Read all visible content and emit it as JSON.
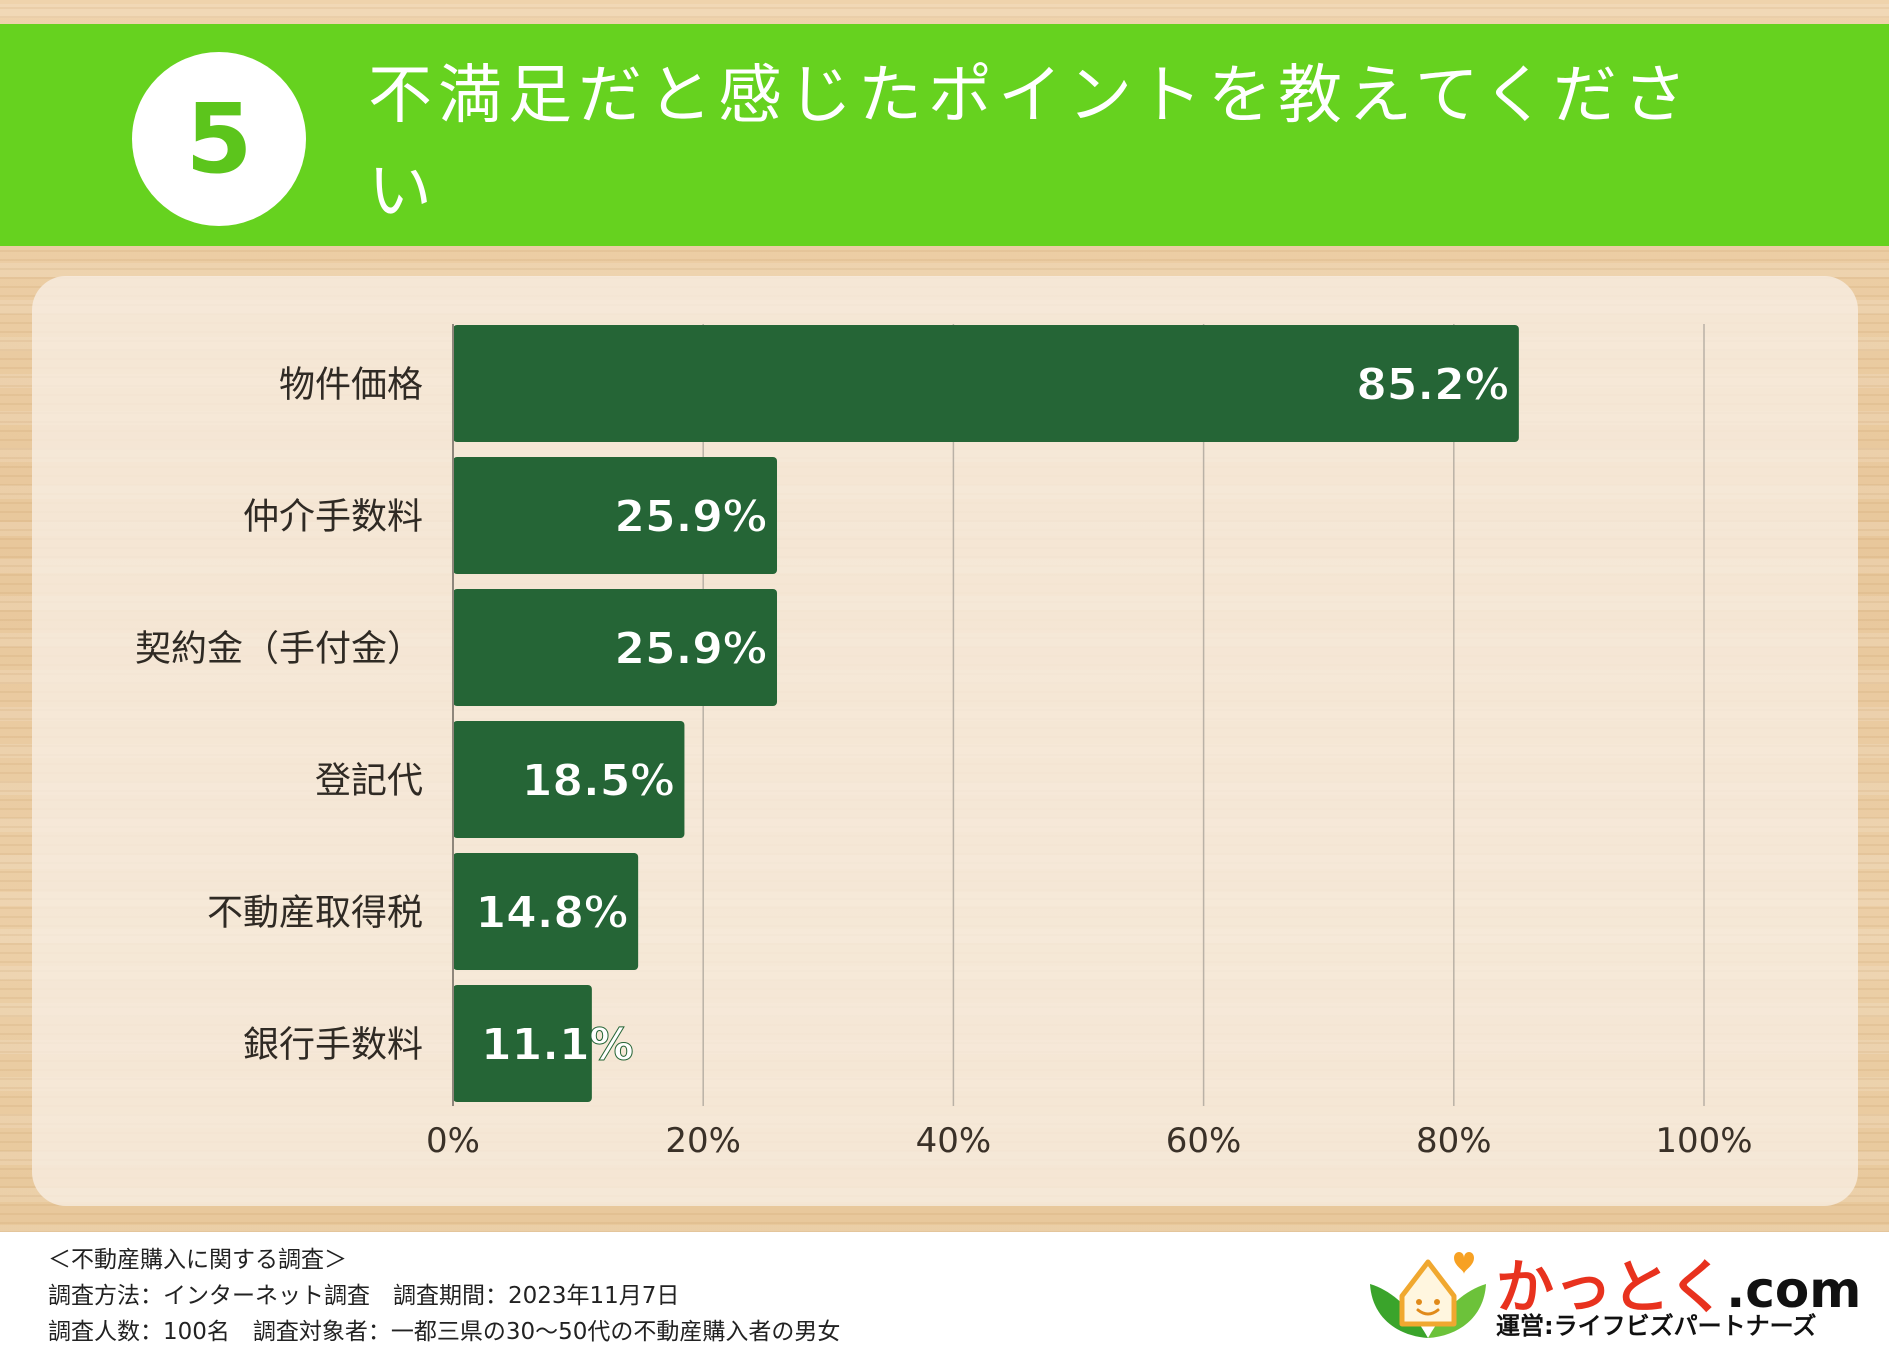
{
  "header": {
    "number": "5",
    "title": "不満足だと感じたポイントを教えてください"
  },
  "chart_data": {
    "type": "bar",
    "orientation": "horizontal",
    "categories": [
      "物件価格",
      "仲介手数料",
      "契約金（手付金）",
      "登記代",
      "不動産取得税",
      "銀行手数料"
    ],
    "values": [
      85.2,
      25.9,
      25.9,
      18.5,
      14.8,
      11.1
    ],
    "value_labels": [
      "85.2%",
      "25.9%",
      "25.9%",
      "18.5%",
      "14.8%",
      "11.1%"
    ],
    "xlim": [
      0,
      100
    ],
    "x_ticks": [
      0,
      20,
      40,
      60,
      80,
      100
    ],
    "x_tick_labels": [
      "0%",
      "20%",
      "40%",
      "60%",
      "80%",
      "100%"
    ],
    "grid": true,
    "bar_color": "#256536"
  },
  "footer": {
    "survey_name": "＜不動産購入に関する調査＞",
    "method_line": "調査方法：インターネット調査　調査期間：2023年11月7日",
    "target_line": "調査人数：100名　調査対象者：一都三県の30〜50代の不動産購入者の男女"
  },
  "logo": {
    "name": "かっとく",
    "suffix": ".com",
    "operator": "運営:ライフビズパートナーズ",
    "icon": "house-leaf-icon"
  },
  "colors": {
    "header_green": "#66d21f",
    "bar_green": "#256536",
    "logo_red": "#e8321e"
  }
}
